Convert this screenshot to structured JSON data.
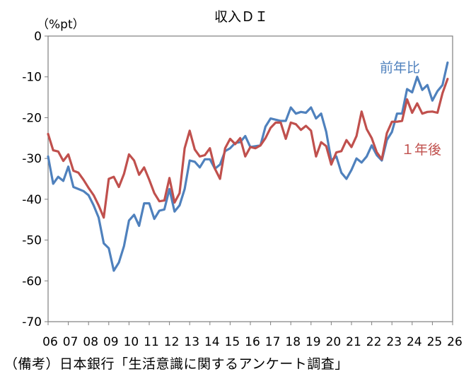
{
  "chart_data": {
    "type": "line",
    "title": "収入ＤＩ",
    "ylabel": "（%pt）",
    "xlabel": "",
    "ylim": [
      -70,
      0
    ],
    "yticks": [
      0,
      -10,
      -20,
      -30,
      -40,
      -50,
      -60,
      -70
    ],
    "xlim": [
      2006,
      2026
    ],
    "xtick_labels": [
      "06",
      "07",
      "08",
      "09",
      "10",
      "11",
      "12",
      "13",
      "14",
      "15",
      "16",
      "17",
      "18",
      "19",
      "20",
      "21",
      "22",
      "23",
      "24",
      "25",
      "26"
    ],
    "grid": false,
    "legend": "inline-labels",
    "series": [
      {
        "name": "前年比",
        "color": "#4F81BD",
        "x": [
          2006.0,
          2006.25,
          2006.5,
          2006.75,
          2007.0,
          2007.25,
          2007.5,
          2007.75,
          2008.0,
          2008.25,
          2008.5,
          2008.75,
          2009.0,
          2009.25,
          2009.5,
          2009.75,
          2010.0,
          2010.25,
          2010.5,
          2010.75,
          2011.0,
          2011.25,
          2011.5,
          2011.75,
          2012.0,
          2012.25,
          2012.5,
          2012.75,
          2013.0,
          2013.25,
          2013.5,
          2013.75,
          2014.0,
          2014.25,
          2014.5,
          2014.75,
          2015.0,
          2015.25,
          2015.5,
          2015.75,
          2016.0,
          2016.25,
          2016.5,
          2016.75,
          2017.0,
          2017.25,
          2017.5,
          2017.75,
          2018.0,
          2018.25,
          2018.5,
          2018.75,
          2019.0,
          2019.25,
          2019.5,
          2019.75,
          2020.0,
          2020.25,
          2020.5,
          2020.75,
          2021.0,
          2021.25,
          2021.5,
          2021.75,
          2022.0,
          2022.25,
          2022.5,
          2022.75,
          2023.0,
          2023.25,
          2023.5,
          2023.75,
          2024.0,
          2024.25,
          2024.5,
          2024.75,
          2025.0,
          2025.25,
          2025.5,
          2025.75
        ],
        "values": [
          -29.5,
          -36.2,
          -34.5,
          -35.5,
          -32.0,
          -37.0,
          -37.5,
          -38.0,
          -39.0,
          -41.5,
          -44.5,
          -50.8,
          -52.0,
          -57.5,
          -55.5,
          -51.5,
          -45.2,
          -43.8,
          -46.5,
          -41.0,
          -41.0,
          -44.8,
          -42.8,
          -42.5,
          -37.5,
          -43.0,
          -41.5,
          -37.5,
          -30.5,
          -30.8,
          -32.2,
          -30.2,
          -30.2,
          -32.5,
          -31.5,
          -28.2,
          -27.5,
          -26.2,
          -26.0,
          -24.5,
          -27.2,
          -27.0,
          -26.8,
          -22.2,
          -20.2,
          -20.5,
          -20.8,
          -20.8,
          -17.5,
          -19.0,
          -18.6,
          -18.8,
          -17.5,
          -20.2,
          -19.0,
          -23.5,
          -30.5,
          -29.5,
          -33.5,
          -35.0,
          -32.8,
          -30.0,
          -31.0,
          -29.5,
          -26.8,
          -29.2,
          -30.5,
          -25.5,
          -23.5,
          -19.0,
          -19.0,
          -13.0,
          -13.8,
          -10.0,
          -13.2,
          -12.0,
          -15.8,
          -13.5,
          -12.0,
          -6.5
        ]
      },
      {
        "name": "１年後",
        "color": "#C0504D",
        "x": [
          2006.0,
          2006.25,
          2006.5,
          2006.75,
          2007.0,
          2007.25,
          2007.5,
          2007.75,
          2008.0,
          2008.25,
          2008.5,
          2008.75,
          2009.0,
          2009.25,
          2009.5,
          2009.75,
          2010.0,
          2010.25,
          2010.5,
          2010.75,
          2011.0,
          2011.25,
          2011.5,
          2011.75,
          2012.0,
          2012.25,
          2012.5,
          2012.75,
          2013.0,
          2013.25,
          2013.5,
          2013.75,
          2014.0,
          2014.25,
          2014.5,
          2014.75,
          2015.0,
          2015.25,
          2015.5,
          2015.75,
          2016.0,
          2016.25,
          2016.5,
          2016.75,
          2017.0,
          2017.25,
          2017.5,
          2017.75,
          2018.0,
          2018.25,
          2018.5,
          2018.75,
          2019.0,
          2019.25,
          2019.5,
          2019.75,
          2020.0,
          2020.25,
          2020.5,
          2020.75,
          2021.0,
          2021.25,
          2021.5,
          2021.75,
          2022.0,
          2022.25,
          2022.5,
          2022.75,
          2023.0,
          2023.25,
          2023.5,
          2023.75,
          2024.0,
          2024.25,
          2024.5,
          2024.75,
          2025.0,
          2025.25,
          2025.5,
          2025.75
        ],
        "values": [
          -24.0,
          -28.0,
          -28.3,
          -30.6,
          -29.0,
          -33.0,
          -33.5,
          -35.2,
          -37.2,
          -39.0,
          -41.5,
          -44.5,
          -35.0,
          -34.5,
          -37.0,
          -33.8,
          -29.0,
          -30.5,
          -34.0,
          -32.2,
          -35.2,
          -38.5,
          -40.5,
          -40.3,
          -34.8,
          -40.8,
          -38.5,
          -27.5,
          -23.2,
          -27.8,
          -29.5,
          -29.2,
          -27.5,
          -32.5,
          -35.0,
          -27.5,
          -25.2,
          -26.5,
          -25.0,
          -29.5,
          -27.2,
          -27.5,
          -26.8,
          -25.0,
          -22.5,
          -21.2,
          -21.2,
          -25.2,
          -21.2,
          -21.6,
          -23.0,
          -22.0,
          -23.2,
          -29.5,
          -26.0,
          -27.0,
          -31.5,
          -28.5,
          -28.2,
          -25.5,
          -27.2,
          -24.5,
          -18.5,
          -22.8,
          -25.0,
          -28.5,
          -30.2,
          -23.8,
          -21.0,
          -21.0,
          -20.8,
          -15.5,
          -18.8,
          -16.5,
          -19.0,
          -18.6,
          -18.5,
          -18.8,
          -14.0,
          -10.5
        ]
      }
    ]
  },
  "footer": {
    "source": "（備考）日本銀行「生活意識に関するアンケート調査」"
  }
}
